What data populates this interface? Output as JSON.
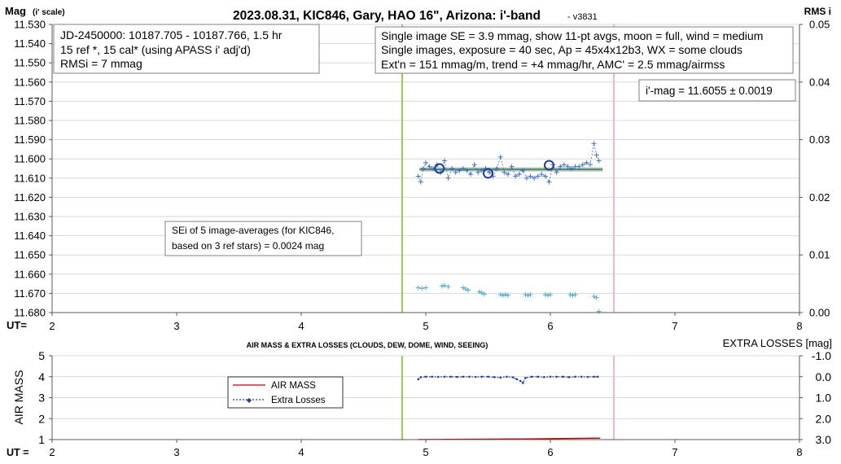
{
  "chart_data": [
    {
      "type": "scatter",
      "title": "2023.08.31, KIC846, Gary, HAO 16\", Arizona: i'-band",
      "version": "- v3831",
      "ylabel_main": "Mag",
      "ylabel_note": "(i' scale)",
      "ylabel_right": "RMS i",
      "xlabel": "UT=",
      "xlim": [
        2,
        8
      ],
      "ylim": [
        11.53,
        11.68
      ],
      "y_inverted": true,
      "y2lim": [
        0,
        0.05
      ],
      "x_ticks": [
        "2",
        "3",
        "4",
        "5",
        "6",
        "7",
        "8"
      ],
      "y_ticks": [
        "11.530",
        "11.540",
        "11.550",
        "11.560",
        "11.570",
        "11.580",
        "11.590",
        "11.600",
        "11.610",
        "11.620",
        "11.630",
        "11.640",
        "11.650",
        "11.660",
        "11.670",
        "11.680"
      ],
      "y2_ticks": [
        "0.05",
        "0.04",
        "0.03",
        "0.02",
        "0.01",
        "0.00"
      ],
      "vlines": [
        {
          "x": 4.81,
          "color": "#92d050"
        },
        {
          "x": 6.51,
          "color": "#f4b6b6"
        }
      ],
      "fit_line": {
        "x": [
          4.95,
          6.42
        ],
        "y": 11.6055,
        "color": "#2e8b57",
        "band_color": "#bdbdbd"
      },
      "boxes": {
        "left": {
          "lines": [
            "JD-2450000: 10187.705 - 10187.766, 1.5  hr",
            "15 ref *, 15 cal* (using APASS i' adj'd)",
            "RMSi = 7 mmag"
          ]
        },
        "right": {
          "lines": [
            "Single image SE = 3.9 mmag, show 11-pt avgs, moon = full, wind = medium",
            "Single images, exposure = 40 sec, Ap = 45x4x12b3, WX = some clouds",
            "Ext'n = 151 mmag/m, trend = +4 mmag/hr, AMC' = 2.5 mmag/airmss"
          ]
        },
        "imag": {
          "lines": [
            "i'-mag = 11.6055 ± 0.0019"
          ]
        },
        "sei": {
          "lines": [
            "SEi of 5 image-averages (for KIC846,",
            "based on 3 ref stars) = 0.0024 mag"
          ]
        }
      },
      "series": [
        {
          "name": "single images",
          "color": "#4472c4",
          "x": [
            4.94,
            4.96,
            4.98,
            5.0,
            5.03,
            5.06,
            5.09,
            5.12,
            5.15,
            5.18,
            5.21,
            5.24,
            5.27,
            5.3,
            5.33,
            5.36,
            5.39,
            5.42,
            5.45,
            5.48,
            5.51,
            5.54,
            5.57,
            5.6,
            5.63,
            5.66,
            5.69,
            5.72,
            5.75,
            5.78,
            5.81,
            5.84,
            5.87,
            5.9,
            5.93,
            5.96,
            5.99,
            6.02,
            6.05,
            6.08,
            6.11,
            6.14,
            6.17,
            6.2,
            6.23,
            6.26,
            6.29,
            6.32,
            6.35,
            6.37,
            6.39
          ],
          "y": [
            11.609,
            11.612,
            11.605,
            11.602,
            11.604,
            11.605,
            11.603,
            11.607,
            11.601,
            11.61,
            11.605,
            11.607,
            11.606,
            11.605,
            11.606,
            11.608,
            11.603,
            11.607,
            11.606,
            11.605,
            11.607,
            11.609,
            11.605,
            11.599,
            11.607,
            11.608,
            11.604,
            11.609,
            11.608,
            11.606,
            11.61,
            11.609,
            11.61,
            11.609,
            11.608,
            11.609,
            11.612,
            11.603,
            11.607,
            11.604,
            11.603,
            11.604,
            11.605,
            11.604,
            11.604,
            11.603,
            11.602,
            11.603,
            11.592,
            11.598,
            11.601
          ]
        },
        {
          "name": "5 image-averages",
          "color": "#1f3d99",
          "x": [
            5.11,
            5.5,
            5.99
          ],
          "y": [
            11.605,
            11.6075,
            11.6033
          ]
        },
        {
          "name": "RMS i",
          "color": "#4bacc6",
          "axis": "right",
          "x": [
            4.94,
            4.97,
            5.0,
            5.13,
            5.15,
            5.18,
            5.3,
            5.32,
            5.34,
            5.43,
            5.45,
            5.47,
            5.6,
            5.62,
            5.64,
            5.66,
            5.8,
            5.82,
            5.84,
            5.96,
            5.98,
            6.0,
            6.16,
            6.18,
            6.2,
            6.35,
            6.37,
            6.39
          ],
          "y": [
            0.0043,
            0.0042,
            0.0043,
            0.0046,
            0.0047,
            0.0045,
            0.0043,
            0.0041,
            0.0039,
            0.0036,
            0.0034,
            0.0032,
            0.0031,
            0.003,
            0.0031,
            0.003,
            0.0031,
            0.003,
            0.0031,
            0.0031,
            0.003,
            0.0031,
            0.0031,
            0.003,
            0.0031,
            0.0028,
            0.0026,
            0.0002
          ]
        }
      ]
    },
    {
      "type": "line",
      "title": "AIR MASS & EXTRA LOSSES (CLOUDS, DEW, DOME, WIND, SEEING)",
      "ylabel": "AIR MASS",
      "ylabel_right": "EXTRA LOSSES [mag]",
      "xlabel": "UT =",
      "xlim": [
        2,
        8
      ],
      "ylim": [
        1,
        5
      ],
      "y2lim": [
        -1.0,
        3.0
      ],
      "y2_inverted": true,
      "x_ticks": [
        "2",
        "3",
        "4",
        "5",
        "6",
        "7",
        "8"
      ],
      "y_ticks": [
        "5",
        "4",
        "3",
        "2",
        "1"
      ],
      "y2_ticks": [
        "-1.0",
        "0.0",
        "1.0",
        "2.0",
        "3.0"
      ],
      "vlines": [
        {
          "x": 4.81,
          "color": "#92d050"
        },
        {
          "x": 6.51,
          "color": "#f4b6b6"
        }
      ],
      "legend": {
        "position": "left",
        "entries": [
          "AIR MASS",
          "Extra Losses"
        ]
      },
      "series": [
        {
          "name": "AIR MASS",
          "color": "#c00000",
          "x": [
            4.94,
            5.2,
            5.5,
            5.8,
            6.1,
            6.4
          ],
          "y": [
            1.005,
            1.01,
            1.02,
            1.03,
            1.05,
            1.07
          ]
        },
        {
          "name": "Extra Losses",
          "color": "#1f3d99",
          "axis": "right",
          "dashed": true,
          "x": [
            4.94,
            4.96,
            5.0,
            5.05,
            5.1,
            5.15,
            5.2,
            5.25,
            5.3,
            5.35,
            5.4,
            5.45,
            5.5,
            5.55,
            5.6,
            5.65,
            5.7,
            5.73,
            5.76,
            5.78,
            5.8,
            5.85,
            5.9,
            5.95,
            6.0,
            6.05,
            6.1,
            6.15,
            6.2,
            6.25,
            6.3,
            6.35,
            6.38
          ],
          "y": [
            0.12,
            0.02,
            0.0,
            0.0,
            0.01,
            0.0,
            0.0,
            0.01,
            0.0,
            0.0,
            0.01,
            0.0,
            0.0,
            0.02,
            0.04,
            0.0,
            0.03,
            0.12,
            0.2,
            0.3,
            0.06,
            0.0,
            0.0,
            0.02,
            0.0,
            0.0,
            0.0,
            0.02,
            0.0,
            0.0,
            0.01,
            0.0,
            0.0
          ]
        }
      ]
    }
  ]
}
